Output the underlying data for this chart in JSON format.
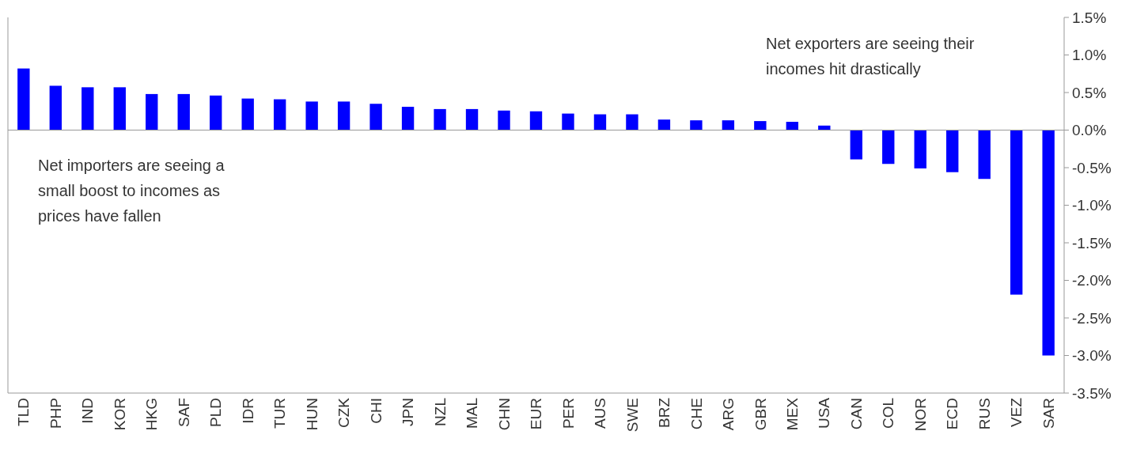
{
  "chart_data": {
    "type": "bar",
    "categories": [
      "TLD",
      "PHP",
      "IND",
      "KOR",
      "HKG",
      "SAF",
      "PLD",
      "IDR",
      "TUR",
      "HUN",
      "CZK",
      "CHI",
      "JPN",
      "NZL",
      "MAL",
      "CHN",
      "EUR",
      "PER",
      "AUS",
      "SWE",
      "BRZ",
      "CHE",
      "ARG",
      "GBR",
      "MEX",
      "USA",
      "CAN",
      "COL",
      "NOR",
      "ECD",
      "RUS",
      "VEZ",
      "SAR"
    ],
    "values": [
      0.82,
      0.59,
      0.57,
      0.57,
      0.48,
      0.48,
      0.46,
      0.42,
      0.41,
      0.38,
      0.38,
      0.35,
      0.31,
      0.28,
      0.28,
      0.26,
      0.25,
      0.22,
      0.21,
      0.21,
      0.14,
      0.13,
      0.13,
      0.12,
      0.11,
      0.06,
      -0.39,
      -0.45,
      -0.51,
      -0.56,
      -0.65,
      -2.19,
      -3.0
    ],
    "color": "#0000ff",
    "ylim": [
      -3.5,
      1.5
    ],
    "yticks": [
      {
        "value": 1.5,
        "label": "1.5%"
      },
      {
        "value": 1.0,
        "label": "1.0%"
      },
      {
        "value": 0.5,
        "label": "0.5%"
      },
      {
        "value": 0,
        "label": "0.0%"
      },
      {
        "value": -0.5,
        "label": "-0.5%"
      },
      {
        "value": -1.0,
        "label": "-1.0%"
      },
      {
        "value": -1.5,
        "label": "-1.5%"
      },
      {
        "value": -2.0,
        "label": "-2.0%"
      },
      {
        "value": -2.5,
        "label": "-2.5%"
      },
      {
        "value": -3.0,
        "label": "-3.0%"
      },
      {
        "value": -3.5,
        "label": "-3.5%"
      }
    ],
    "annotations": [
      "Net exporters are seeing their incomes hit drastically",
      "Net importers are seeing a small boost to incomes as prices have fallen"
    ]
  }
}
